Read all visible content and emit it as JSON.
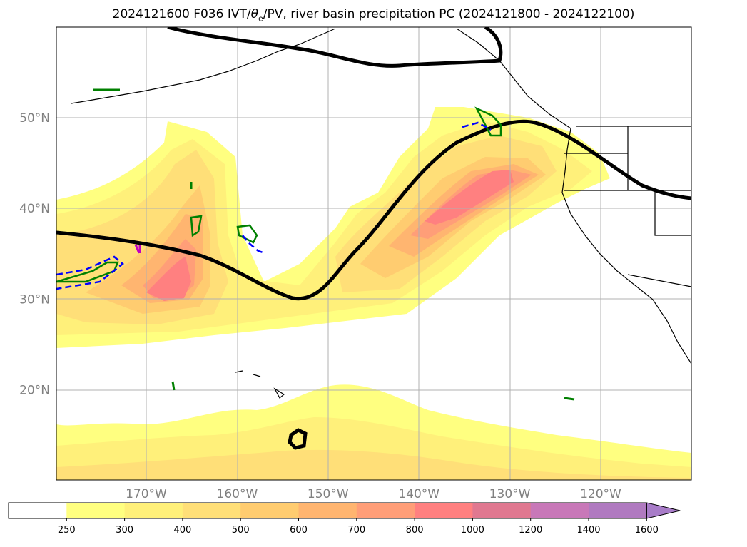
{
  "title": {
    "prefix": "2024121600 F036 IVT/",
    "theta_symbol": "θ",
    "theta_sub": "e",
    "suffix": "/PV, river basin precipitation PC (2024121800 - 2024122100)"
  },
  "map": {
    "lat_labels": [
      "50°N",
      "40°N",
      "30°N",
      "20°N"
    ],
    "lat_values": [
      50,
      40,
      30,
      20
    ],
    "lon_labels": [
      "170°W",
      "160°W",
      "150°W",
      "140°W",
      "130°W",
      "120°W"
    ],
    "lon_values": [
      -170,
      -160,
      -150,
      -140,
      -130,
      -120
    ],
    "ivt_fill_colors": [
      "#ffff80",
      "#fff07a",
      "#ffdf78",
      "#ffcc70",
      "#ffb570",
      "#ff9e78",
      "#ff8080",
      "#e07890",
      "#c878b8",
      "#a87cc8"
    ],
    "contour_colors": {
      "pv": "#000000",
      "theta_e": "#008000",
      "precip_low": "#0000ff",
      "precip_high": "#c000c0"
    }
  },
  "colorbar": {
    "tick_labels": [
      "250",
      "300",
      "400",
      "500",
      "600",
      "700",
      "800",
      "1000",
      "1200",
      "1400",
      "1600"
    ],
    "colors": [
      "#ffffff",
      "#ffff80",
      "#fff07a",
      "#ffdf78",
      "#ffcc70",
      "#ffb570",
      "#ff9e78",
      "#ff8080",
      "#e07890",
      "#c878b8",
      "#b07ac0",
      "#a87cc8"
    ],
    "extend": "max"
  }
}
